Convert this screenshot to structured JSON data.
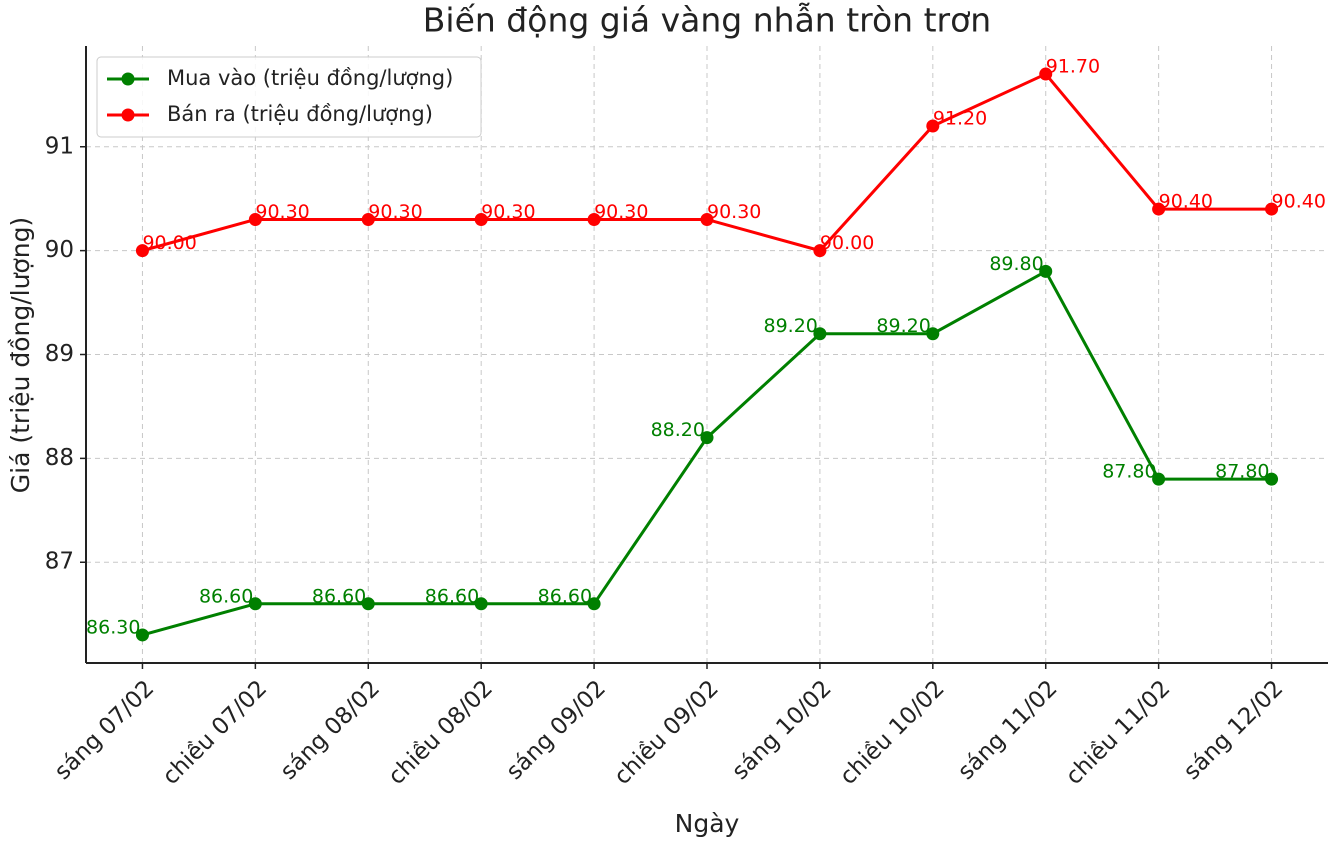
{
  "chart_data": {
    "type": "line",
    "title": "Biến động giá vàng nhẫn tròn trơn",
    "x_label": "Ngày",
    "y_label": "Giá (triệu đồng/lượng)",
    "categories": [
      "sáng 07/02",
      "chiều 07/02",
      "sáng 08/02",
      "chiều 08/02",
      "sáng 09/02",
      "chiều 09/02",
      "sáng 10/02",
      "chiều 10/02",
      "sáng 11/02",
      "chiều 11/02",
      "sáng 12/02"
    ],
    "series": [
      {
        "name": "Mua vào (triệu đồng/lượng)",
        "color": "#008000",
        "values": [
          86.3,
          86.6,
          86.6,
          86.6,
          86.6,
          88.2,
          89.2,
          89.2,
          89.8,
          87.8,
          87.8
        ],
        "value_labels": [
          "86.30",
          "86.60",
          "86.60",
          "86.60",
          "86.60",
          "88.20",
          "89.20",
          "89.20",
          "89.80",
          "87.80",
          "87.80"
        ]
      },
      {
        "name": "Bán ra (triệu đồng/lượng)",
        "color": "#ff0000",
        "values": [
          90.0,
          90.3,
          90.3,
          90.3,
          90.3,
          90.3,
          90.0,
          91.2,
          91.7,
          90.4,
          90.4
        ],
        "value_labels": [
          "90.00",
          "90.30",
          "90.30",
          "90.30",
          "90.30",
          "90.30",
          "90.00",
          "91.20",
          "91.70",
          "90.40",
          "90.40"
        ]
      }
    ],
    "ylim": [
      86.03,
      91.97
    ],
    "yticks": [
      87,
      88,
      89,
      90,
      91
    ],
    "grid": true,
    "legend": "upper left"
  }
}
